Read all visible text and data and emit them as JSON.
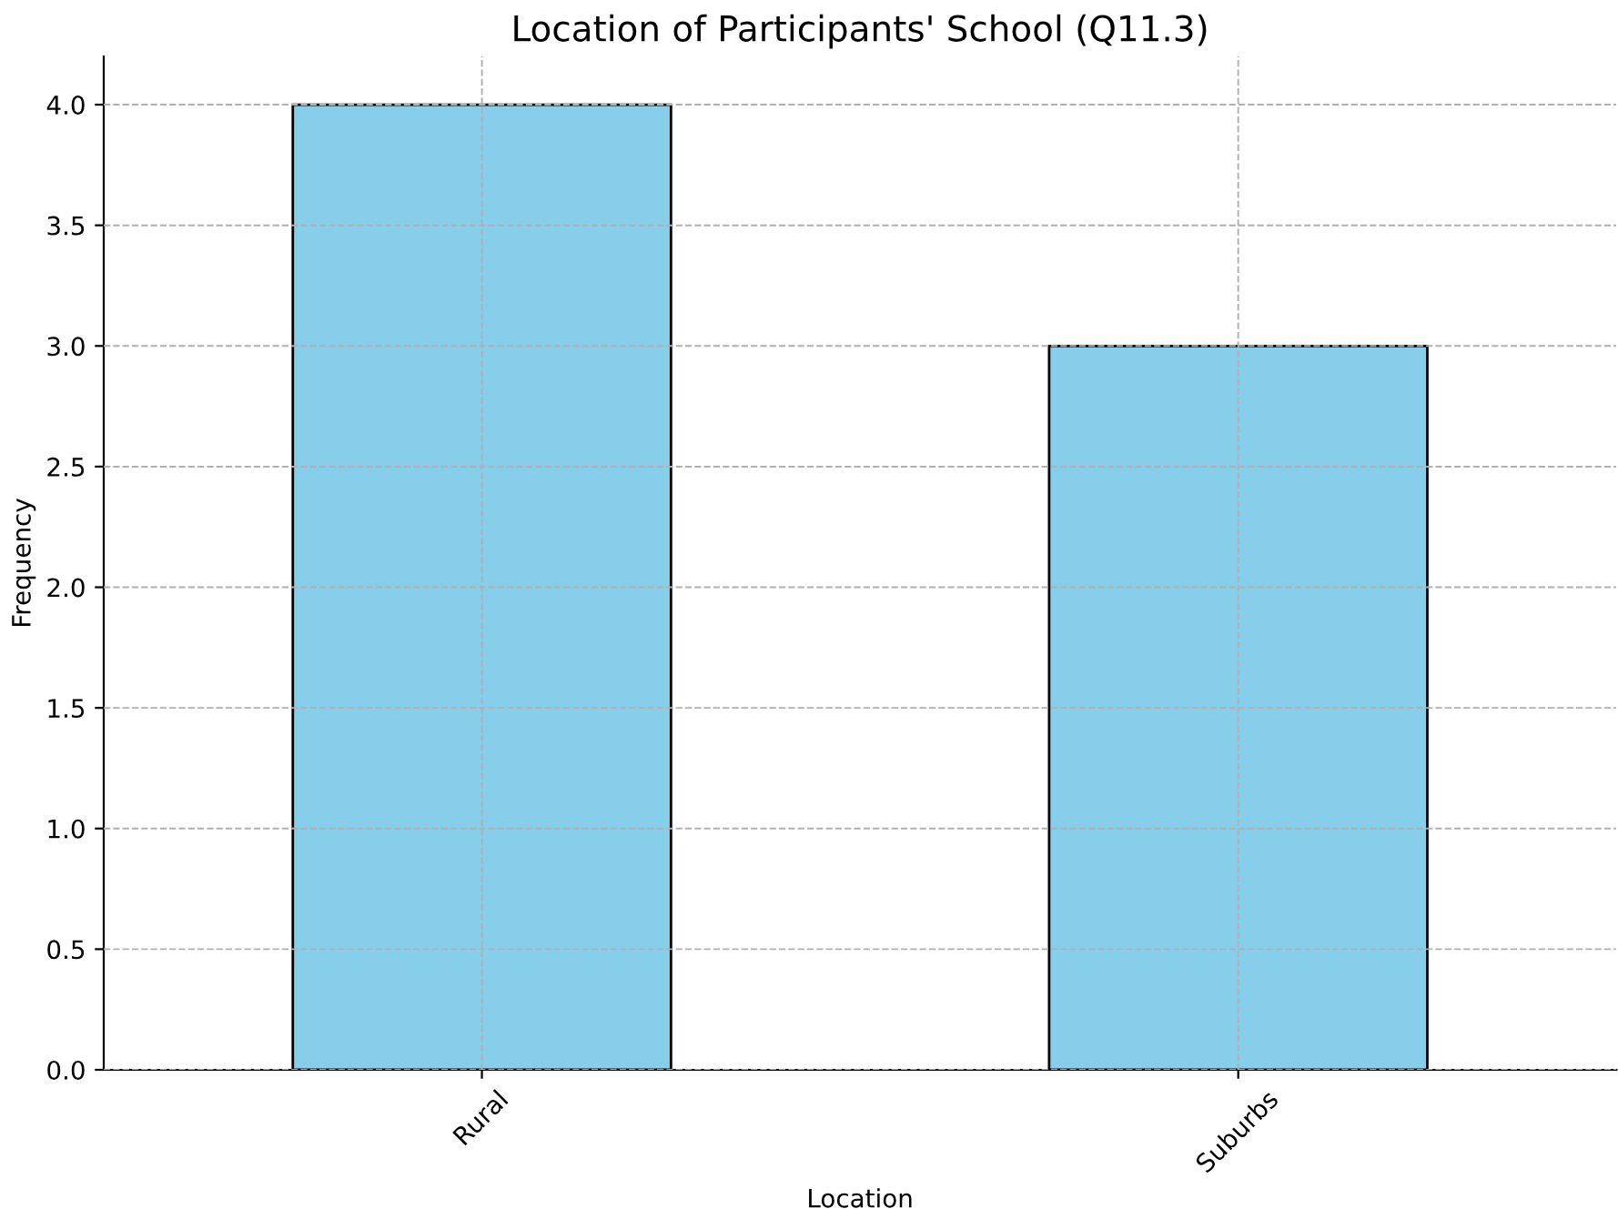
{
  "chart_data": {
    "type": "bar",
    "title": "Location of Participants' School (Q11.3)",
    "xlabel": "Location",
    "ylabel": "Frequency",
    "categories": [
      "Rural",
      "Suburbs"
    ],
    "values": [
      4,
      3
    ],
    "color": "#87ceeb",
    "ylim": [
      0,
      4.2
    ],
    "yticks": [
      {
        "value": 0,
        "label": "0.0"
      },
      {
        "value": 0.5,
        "label": "0.5"
      },
      {
        "value": 1,
        "label": "1.0"
      },
      {
        "value": 1.5,
        "label": "1.5"
      },
      {
        "value": 2,
        "label": "2.0"
      },
      {
        "value": 2.5,
        "label": "2.5"
      },
      {
        "value": 3,
        "label": "3.0"
      },
      {
        "value": 3.5,
        "label": "3.5"
      },
      {
        "value": 4,
        "label": "4.0"
      }
    ],
    "grid": true,
    "legend": false
  }
}
